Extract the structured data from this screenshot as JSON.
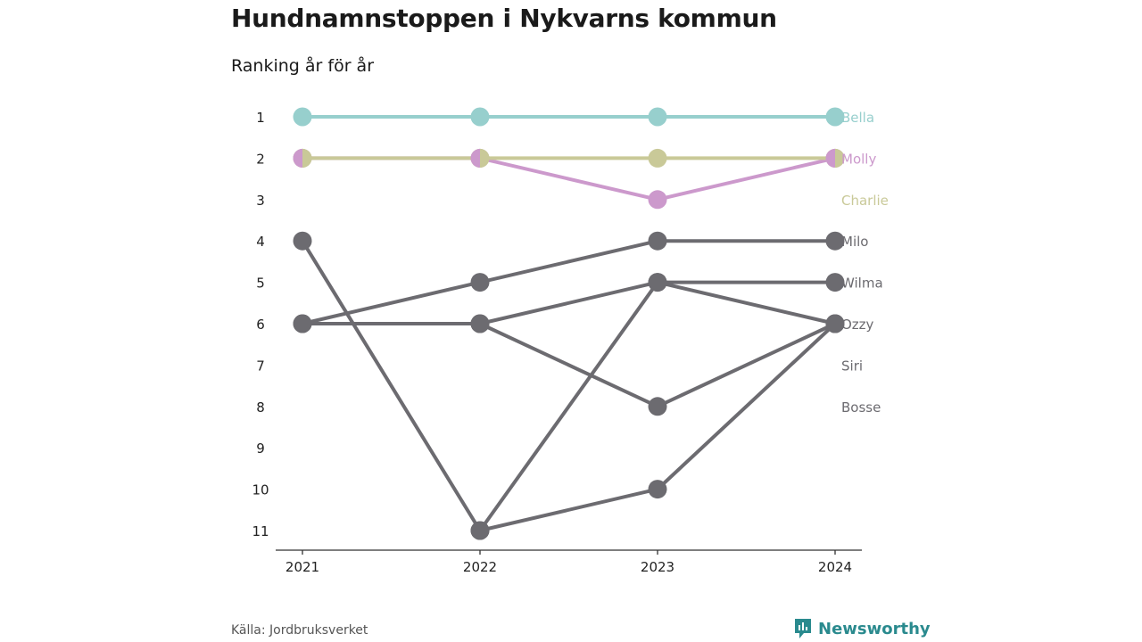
{
  "title": "Hundnamnstoppen i Nykvarns kommun",
  "subtitle": "Ranking år för år",
  "source": "Källa: Jordbruksverket",
  "brand": {
    "name": "Newsworthy",
    "color": "#2a8a8e",
    "icon": "newsworthy-logo-icon"
  },
  "chart_data": {
    "type": "line",
    "title": "Hundnamnstoppen i Nykvarns kommun",
    "subtitle": "Ranking år för år",
    "x": [
      "2021",
      "2022",
      "2023",
      "2024"
    ],
    "y_ticks": [
      1,
      2,
      3,
      4,
      5,
      6,
      7,
      8,
      9,
      10,
      11
    ],
    "ylim": [
      1,
      11
    ],
    "y_reversed": true,
    "grid": false,
    "series": [
      {
        "name": "Bella",
        "values": [
          1,
          1,
          1,
          1
        ],
        "color": "#97cfcd"
      },
      {
        "name": "Molly",
        "values": [
          2,
          2,
          3,
          2
        ],
        "color": "#cc99cc"
      },
      {
        "name": "Charlie",
        "values": [
          2,
          2,
          2,
          2
        ],
        "color": "#c9c998"
      },
      {
        "name": "Milo",
        "values": [
          6,
          5,
          4,
          4
        ],
        "color": "#6c6b70"
      },
      {
        "name": "Wilma",
        "values": [
          4,
          11,
          5,
          5
        ],
        "color": "#6c6b70"
      },
      {
        "name": "Ozzy",
        "values": [
          6,
          6,
          5,
          6
        ],
        "color": "#6c6b70"
      },
      {
        "name": "Siri",
        "values": [
          null,
          6,
          8,
          6
        ],
        "color": "#6c6b70"
      },
      {
        "name": "Bosse",
        "values": [
          null,
          11,
          10,
          6
        ],
        "color": "#6c6b70"
      }
    ]
  }
}
